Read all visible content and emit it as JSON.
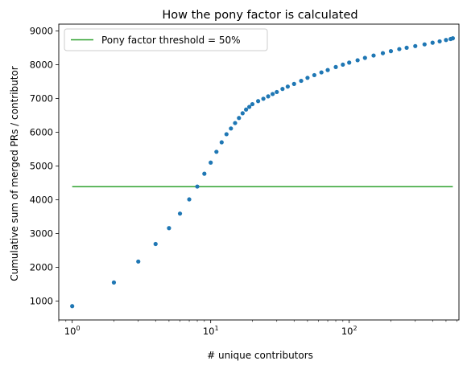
{
  "chart_data": {
    "type": "scatter",
    "title": "How the pony factor is calculated",
    "xlabel": "# unique contributors",
    "ylabel": "Cumulative sum of merged PRs / contributor",
    "x_scale": "log",
    "xlim": [
      0.8,
      620
    ],
    "ylim": [
      440,
      9200
    ],
    "x_ticks": [
      {
        "value": 1,
        "base": "10",
        "exp": "0"
      },
      {
        "value": 10,
        "base": "10",
        "exp": "1"
      },
      {
        "value": 100,
        "base": "10",
        "exp": "2"
      }
    ],
    "y_ticks": [
      1000,
      2000,
      3000,
      4000,
      5000,
      6000,
      7000,
      8000,
      9000
    ],
    "y_tick_labels": [
      "1000",
      "2000",
      "3000",
      "4000",
      "5000",
      "6000",
      "7000",
      "8000",
      "9000"
    ],
    "grid": false,
    "legend_position": "upper-left",
    "colors": {
      "points": "#1f77b4",
      "threshold": "#2ca02c"
    },
    "threshold": {
      "label": "Pony factor threshold = 50%",
      "value": 4390,
      "x_range": [
        1,
        560
      ]
    },
    "series": [
      {
        "points": [
          [
            1,
            850
          ],
          [
            2,
            1550
          ],
          [
            3,
            2170
          ],
          [
            4,
            2690
          ],
          [
            5,
            3160
          ],
          [
            6,
            3590
          ],
          [
            7,
            4010
          ],
          [
            8,
            4390
          ],
          [
            9,
            4770
          ],
          [
            10,
            5100
          ],
          [
            11,
            5420
          ],
          [
            12,
            5700
          ],
          [
            13,
            5940
          ],
          [
            14,
            6110
          ],
          [
            15,
            6270
          ],
          [
            16,
            6420
          ],
          [
            17,
            6560
          ],
          [
            18,
            6670
          ],
          [
            19,
            6750
          ],
          [
            20,
            6830
          ],
          [
            22,
            6920
          ],
          [
            24,
            6990
          ],
          [
            26,
            7060
          ],
          [
            28,
            7130
          ],
          [
            30,
            7190
          ],
          [
            33,
            7280
          ],
          [
            36,
            7350
          ],
          [
            40,
            7430
          ],
          [
            45,
            7520
          ],
          [
            50,
            7610
          ],
          [
            56,
            7690
          ],
          [
            63,
            7770
          ],
          [
            70,
            7840
          ],
          [
            80,
            7930
          ],
          [
            90,
            8000
          ],
          [
            100,
            8060
          ],
          [
            115,
            8130
          ],
          [
            130,
            8200
          ],
          [
            150,
            8270
          ],
          [
            175,
            8340
          ],
          [
            200,
            8400
          ],
          [
            230,
            8460
          ],
          [
            260,
            8500
          ],
          [
            300,
            8550
          ],
          [
            350,
            8600
          ],
          [
            400,
            8650
          ],
          [
            450,
            8690
          ],
          [
            500,
            8730
          ],
          [
            540,
            8760
          ],
          [
            560,
            8780
          ]
        ]
      }
    ]
  }
}
